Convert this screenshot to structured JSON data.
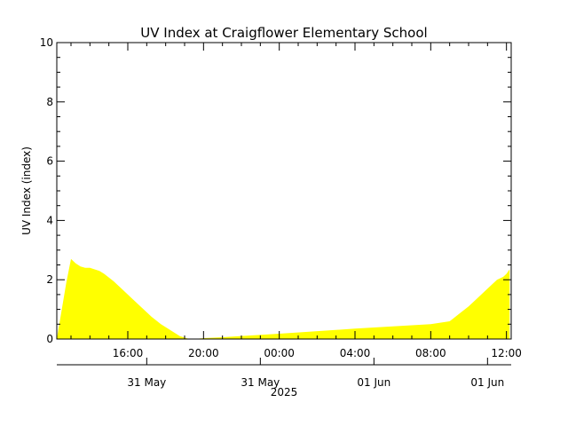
{
  "chart_data": {
    "type": "area",
    "title": "UV Index at Craigflower Elementary School",
    "ylabel": "UV Index (index)",
    "xlabel": "2025",
    "ylim": [
      0,
      10
    ],
    "y_ticks": [
      "0",
      "2",
      "4",
      "6",
      "8",
      "10"
    ],
    "x_time_ticks": [
      "16:00",
      "20:00",
      "00:00",
      "04:00",
      "08:00",
      "12:00"
    ],
    "x_date_ticks": [
      "31 May",
      "31 May",
      "01 Jun",
      "01 Jun"
    ],
    "x_range": [
      "2025-05-31 12:15",
      "2025-06-01 12:15"
    ],
    "grid": false,
    "fill_color": "#ffff00",
    "series": [
      {
        "x": [
          "2025-05-31 12:15",
          "2025-05-31 12:45",
          "2025-05-31 13:00",
          "2025-05-31 13:15",
          "2025-05-31 13:30",
          "2025-05-31 13:45",
          "2025-05-31 14:00",
          "2025-05-31 14:30",
          "2025-05-31 14:45",
          "2025-05-31 15:15",
          "2025-05-31 15:45",
          "2025-05-31 16:15",
          "2025-05-31 16:45",
          "2025-05-31 17:15",
          "2025-05-31 17:45",
          "2025-05-31 18:15",
          "2025-05-31 18:45",
          "2025-05-31 19:15",
          "2025-05-31 19:30",
          "2025-05-31 20:00",
          "2025-05-31 21:00",
          "2025-06-01 00:00",
          "2025-06-01 04:00",
          "2025-06-01 08:00",
          "2025-06-01 08:30",
          "2025-06-01 09:00",
          "2025-06-01 09:30",
          "2025-06-01 10:00",
          "2025-06-01 10:30",
          "2025-06-01 11:00",
          "2025-06-01 11:30",
          "2025-06-01 11:50",
          "2025-06-01 12:00",
          "2025-06-01 12:10"
        ],
        "y": [
          0,
          1.9,
          2.7,
          2.55,
          2.45,
          2.4,
          2.4,
          2.3,
          2.2,
          1.95,
          1.65,
          1.35,
          1.05,
          0.75,
          0.5,
          0.3,
          0.1,
          0,
          0,
          0.03,
          0.06,
          0.18,
          0.35,
          0.5,
          0.55,
          0.6,
          0.85,
          1.1,
          1.4,
          1.7,
          2.0,
          2.1,
          2.2,
          2.35
        ]
      }
    ]
  }
}
